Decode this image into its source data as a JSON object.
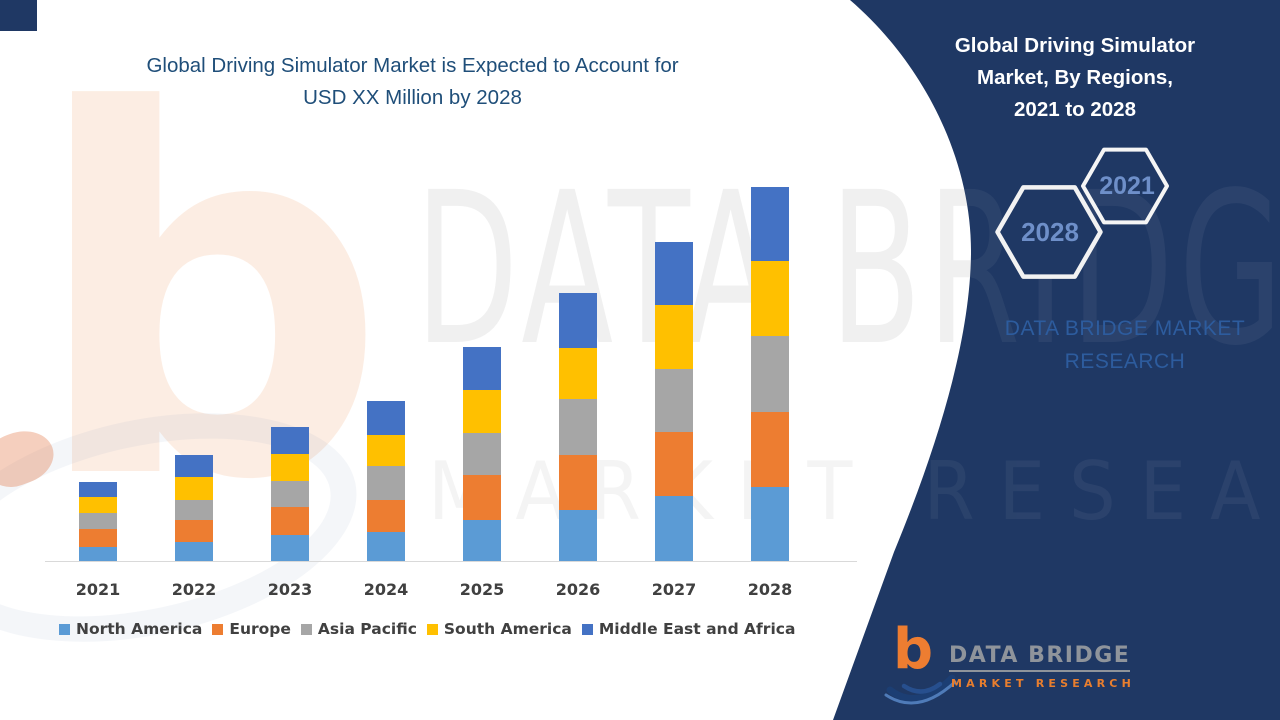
{
  "left_chart": {
    "title_line1": "Global Driving Simulator Market is Expected to Account for",
    "title_line2": "USD XX Million by 2028"
  },
  "chart_data": {
    "type": "bar",
    "stacked": true,
    "title": "Global Driving Simulator Market is Expected to Account for USD XX Million by 2028",
    "xlabel": "",
    "ylabel": "",
    "y_axis_visible": false,
    "value_note": "USD Million values not disclosed (shown as XX); series values are relative units read from bar heights",
    "legend_position": "bottom",
    "categories": [
      "2021",
      "2022",
      "2023",
      "2024",
      "2025",
      "2026",
      "2027",
      "2028"
    ],
    "totals": [
      80,
      107,
      135,
      161,
      215,
      269,
      320,
      375
    ],
    "series": [
      {
        "name": "North America",
        "color": "#5B9BD5",
        "values": [
          15,
          20,
          27,
          30,
          42,
          52,
          66,
          75
        ]
      },
      {
        "name": "Europe",
        "color": "#ED7D31",
        "values": [
          18,
          22,
          28,
          32,
          45,
          55,
          64,
          75
        ]
      },
      {
        "name": "Asia Pacific",
        "color": "#A6A6A6",
        "values": [
          16,
          20,
          26,
          34,
          42,
          56,
          63,
          76
        ]
      },
      {
        "name": "South America",
        "color": "#FFC000",
        "values": [
          16,
          23,
          27,
          31,
          43,
          51,
          64,
          75
        ]
      },
      {
        "name": "Middle East and Africa",
        "color": "#4472C4",
        "values": [
          15,
          22,
          27,
          34,
          43,
          55,
          63,
          74
        ]
      }
    ]
  },
  "right_panel": {
    "panel_color": "#1F3864",
    "title_line1": "Global Driving Simulator",
    "title_line2": "Market, By Regions,",
    "title_line3": "2021 to 2028",
    "hexagon_back_label": "2021",
    "hexagon_front_label": "2028",
    "hex_label_color": "#6E8FC9",
    "brand_line1": "DATA BRIDGE MARKET",
    "brand_line2": "RESEARCH",
    "brand_text_color": "#2D5C9E"
  },
  "logo": {
    "mark": "b",
    "name": "DATA BRIDGE",
    "tagline": "MARKET RESEARCH"
  },
  "watermarks": {
    "big_text": "DATA BRIDGE",
    "sub_text": "MARKET RESEARCH",
    "logo_letter": "b"
  }
}
